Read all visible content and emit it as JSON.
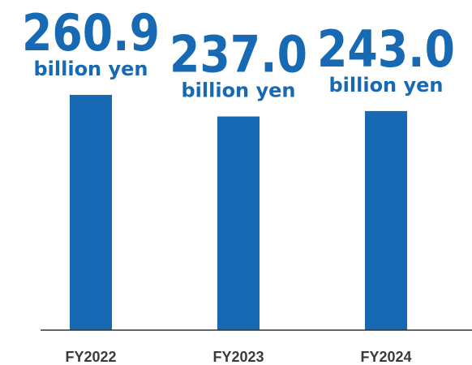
{
  "chart_data": {
    "type": "bar",
    "categories": [
      "FY2022",
      "FY2023",
      "FY2024"
    ],
    "values": [
      260.9,
      237.0,
      243.0
    ],
    "value_labels": [
      "260.9",
      "237.0",
      "243.0"
    ],
    "unit_label": "billion yen",
    "title": "",
    "xlabel": "",
    "ylabel": "",
    "ylim": [
      0,
      260.9
    ],
    "grid": false,
    "legend": "none"
  },
  "colors": {
    "bar": "#1769b4",
    "value_text": "#1769b4",
    "axis": "#333333",
    "tick_text": "#3a3a3a",
    "background": "#ffffff"
  }
}
